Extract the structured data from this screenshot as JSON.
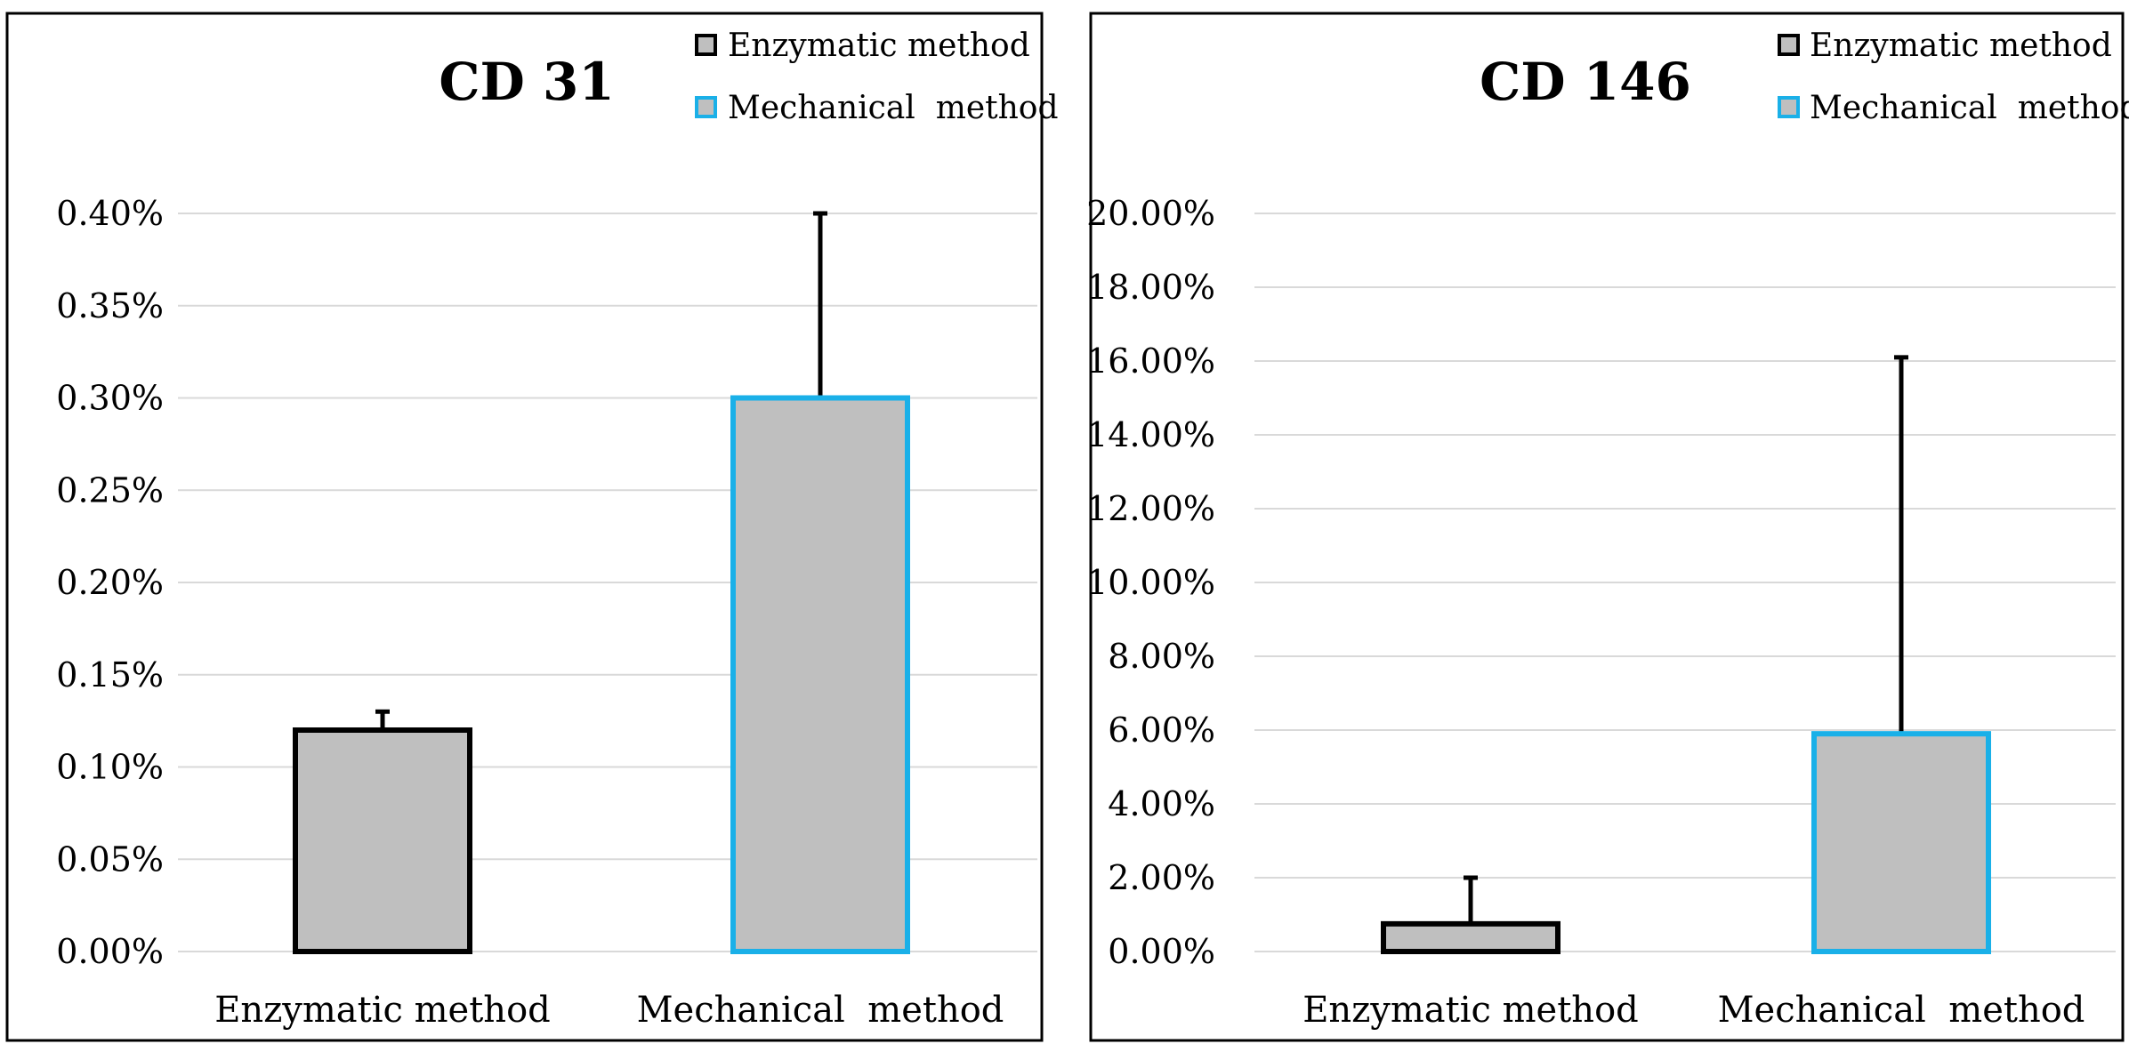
{
  "chart_data": [
    {
      "type": "bar",
      "title": "CD 31",
      "categories": [
        "Enzymatic method",
        "Mechanical  method"
      ],
      "values": [
        0.0012,
        0.003
      ],
      "error_upper": [
        0.0013,
        0.004
      ],
      "ylim": [
        0,
        0.004
      ],
      "yticks": [
        0,
        0.0005,
        0.001,
        0.0015,
        0.002,
        0.0025,
        0.003,
        0.0035,
        0.004
      ],
      "ytick_labels": [
        "0.00%",
        "0.05%",
        "0.10%",
        "0.15%",
        "0.20%",
        "0.25%",
        "0.30%",
        "0.35%",
        "0.40%"
      ],
      "xlabel": "",
      "ylabel": "",
      "grid": true,
      "legend": [
        "Enzymatic method",
        "Mechanical  method"
      ],
      "legend_position": "top-right",
      "bar_fill": "#bfbfbf",
      "bar_edge_colors": [
        "#000000",
        "#1ab0e8"
      ]
    },
    {
      "type": "bar",
      "title": "CD 146",
      "categories": [
        "Enzymatic method",
        "Mechanical  method"
      ],
      "values": [
        0.0075,
        0.059
      ],
      "error_upper": [
        0.02,
        0.161
      ],
      "ylim": [
        0,
        0.2
      ],
      "yticks": [
        0,
        0.02,
        0.04,
        0.06,
        0.08,
        0.1,
        0.12,
        0.14,
        0.16,
        0.18,
        0.2
      ],
      "ytick_labels": [
        "0.00%",
        "2.00%",
        "4.00%",
        "6.00%",
        "8.00%",
        "10.00%",
        "12.00%",
        "14.00%",
        "16.00%",
        "18.00%",
        "20.00%"
      ],
      "xlabel": "",
      "ylabel": "",
      "grid": true,
      "legend": [
        "Enzymatic method",
        "Mechanical  method"
      ],
      "legend_position": "top-right",
      "bar_fill": "#bfbfbf",
      "bar_edge_colors": [
        "#000000",
        "#1ab0e8"
      ]
    }
  ]
}
